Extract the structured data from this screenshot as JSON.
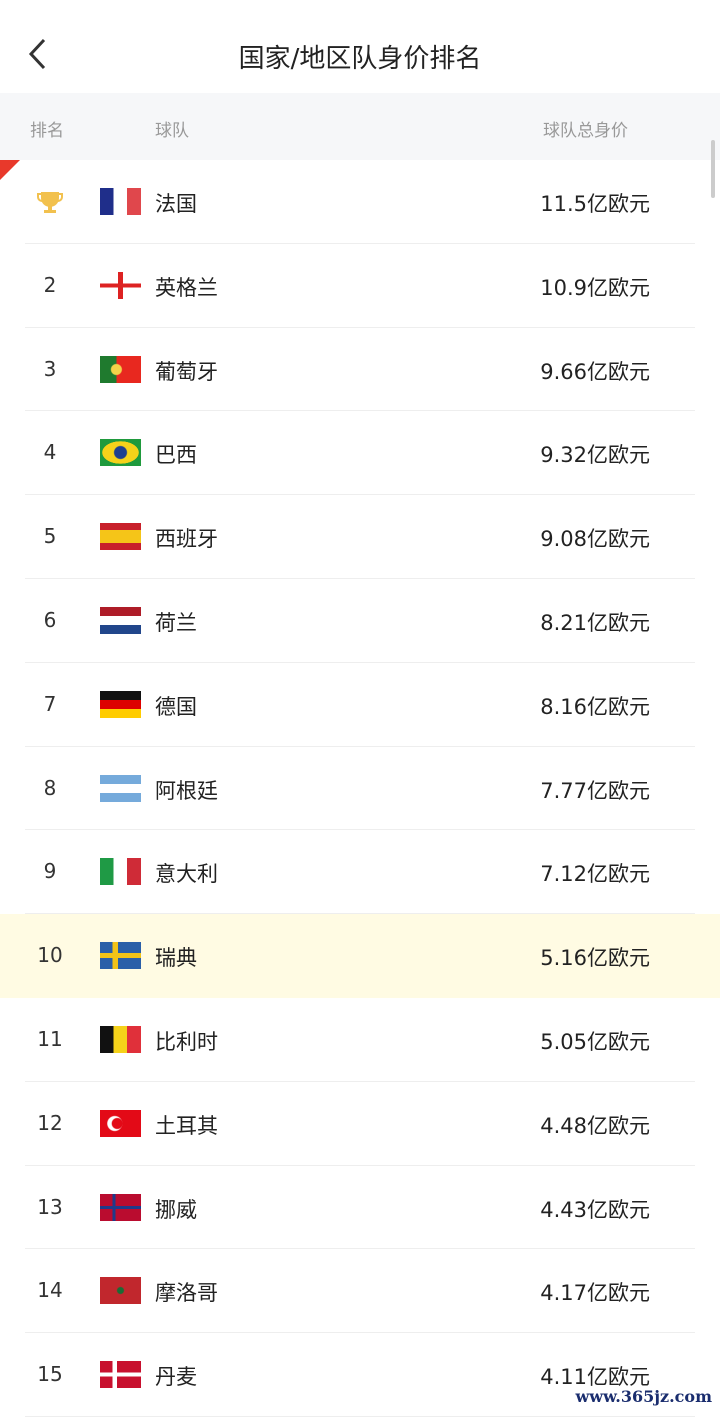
{
  "header": {
    "title": "国家/地区队身价排名"
  },
  "columns": {
    "rank": "排名",
    "team": "球队",
    "value": "球队总身价"
  },
  "rows": [
    {
      "rank": "1",
      "icon": "trophy-icon",
      "team": "法国",
      "value": "11.5亿欧元",
      "flag": "france"
    },
    {
      "rank": "2",
      "team": "英格兰",
      "value": "10.9亿欧元",
      "flag": "england"
    },
    {
      "rank": "3",
      "team": "葡萄牙",
      "value": "9.66亿欧元",
      "flag": "portugal"
    },
    {
      "rank": "4",
      "team": "巴西",
      "value": "9.32亿欧元",
      "flag": "brazil"
    },
    {
      "rank": "5",
      "team": "西班牙",
      "value": "9.08亿欧元",
      "flag": "spain"
    },
    {
      "rank": "6",
      "team": "荷兰",
      "value": "8.21亿欧元",
      "flag": "netherlands"
    },
    {
      "rank": "7",
      "team": "德国",
      "value": "8.16亿欧元",
      "flag": "germany"
    },
    {
      "rank": "8",
      "team": "阿根廷",
      "value": "7.77亿欧元",
      "flag": "argentina"
    },
    {
      "rank": "9",
      "team": "意大利",
      "value": "7.12亿欧元",
      "flag": "italy"
    },
    {
      "rank": "10",
      "team": "瑞典",
      "value": "5.16亿欧元",
      "flag": "sweden",
      "highlighted": true
    },
    {
      "rank": "11",
      "team": "比利时",
      "value": "5.05亿欧元",
      "flag": "belgium"
    },
    {
      "rank": "12",
      "team": "土耳其",
      "value": "4.48亿欧元",
      "flag": "turkey"
    },
    {
      "rank": "13",
      "team": "挪威",
      "value": "4.43亿欧元",
      "flag": "norway"
    },
    {
      "rank": "14",
      "team": "摩洛哥",
      "value": "4.17亿欧元",
      "flag": "morocco"
    },
    {
      "rank": "15",
      "team": "丹麦",
      "value": "4.11亿欧元",
      "flag": "denmark"
    }
  ],
  "colors": {
    "highlight": "#fffbe3",
    "accent": "#e8392b",
    "trophy": "#f2c14e"
  },
  "watermark": "www.365jz.com"
}
